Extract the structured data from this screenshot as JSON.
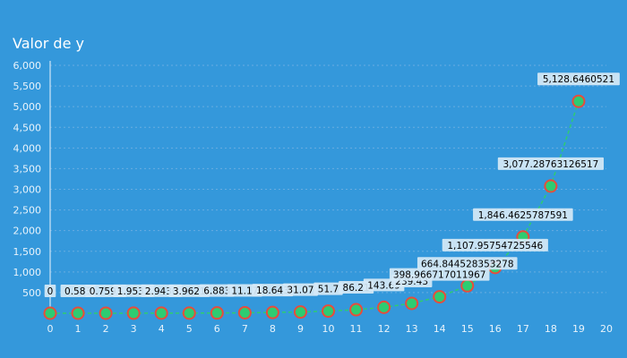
{
  "chart_data": {
    "type": "line",
    "title": "Valor de y",
    "xlabel": "",
    "ylabel": "",
    "x": [
      0,
      1,
      2,
      3,
      4,
      5,
      6,
      7,
      8,
      9,
      10,
      11,
      12,
      13,
      14,
      15,
      16,
      17,
      18,
      19,
      20
    ],
    "y_tick_labels": [
      "500",
      "1,000",
      "1,500",
      "2,000",
      "2,500",
      "3,000",
      "3,500",
      "4,000",
      "4,500",
      "5,000",
      "5,500",
      "6,000"
    ],
    "x_tick_labels": [
      "0",
      "1",
      "2",
      "3",
      "4",
      "5",
      "6",
      "7",
      "8",
      "9",
      "10",
      "11",
      "12",
      "13",
      "14",
      "15",
      "16",
      "17",
      "18",
      "19",
      "20"
    ],
    "xlim": [
      0,
      20
    ],
    "ylim": [
      0,
      6000
    ],
    "grid": true,
    "series": [
      {
        "name": "Valor de y",
        "values": [
          0,
          0.583,
          0.7593,
          1.9532,
          2.9436,
          3.9621,
          6.883,
          11.17,
          18.643,
          31.07,
          51.7,
          86.21,
          143.69,
          239.43,
          398.966717011967,
          664.844528353278,
          1107.95754725546,
          1846.4625787591,
          3077.28763126517,
          5128.6460521
        ],
        "x": [
          0,
          1,
          2,
          3,
          4,
          5,
          6,
          7,
          8,
          9,
          10,
          11,
          12,
          13,
          14,
          15,
          16,
          17,
          18,
          19
        ],
        "labels": [
          "0",
          "0.583",
          "0.7593",
          "1.9532",
          "2.9436",
          "3.9621",
          "6.883",
          "11.17",
          "18.643",
          "31.07",
          "51.7",
          "86.21",
          "143.69",
          "239.43",
          "398.966717011967",
          "664.844528353278",
          "1,107.95754725546",
          "1,846.4625787591",
          "3,077.28763126517",
          "5,128.6460521"
        ]
      }
    ],
    "colors": {
      "line": "#2ecc71",
      "marker_edge": "#e74c3c",
      "background": "#3498db"
    }
  }
}
